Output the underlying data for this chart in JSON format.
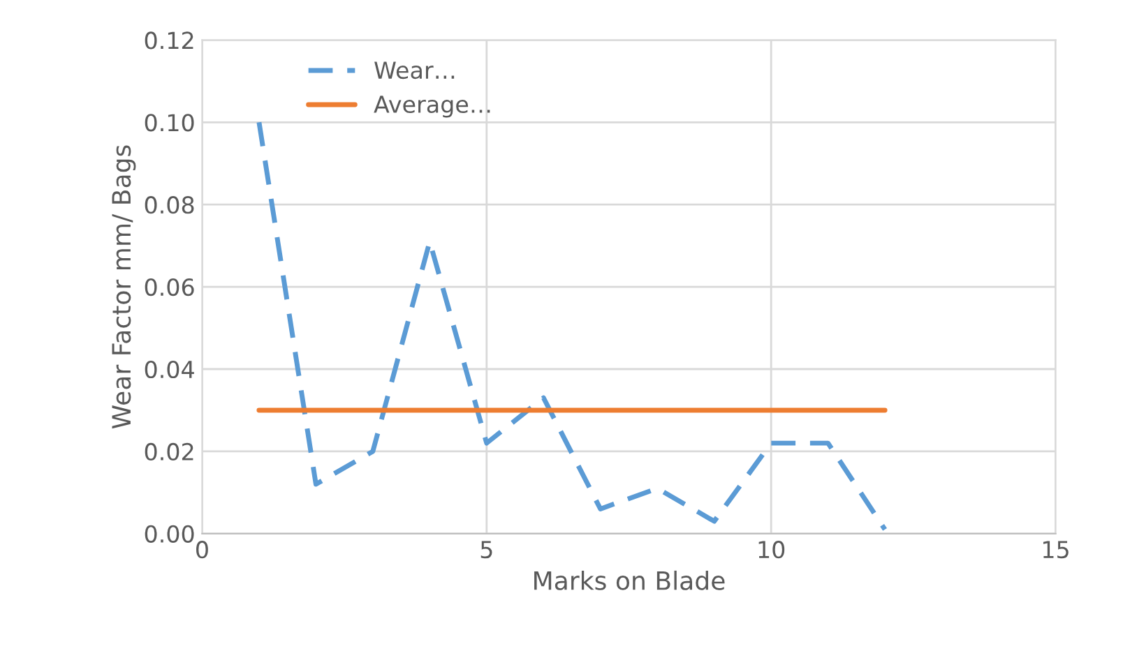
{
  "chart_data": {
    "type": "line",
    "xlabel": "Marks on Blade",
    "ylabel": "Wear Factor mm/ Bags",
    "xlim": [
      0,
      15
    ],
    "xticks": [
      0,
      5,
      10,
      15
    ],
    "ylim": [
      0,
      0.12
    ],
    "yticks": [
      {
        "value": 0,
        "label": "0.00"
      },
      {
        "value": 0.02,
        "label": "0.02"
      },
      {
        "value": 0.04,
        "label": "0.04"
      },
      {
        "value": 0.06,
        "label": "0.06"
      },
      {
        "value": 0.08,
        "label": "0.08"
      },
      {
        "value": 0.1,
        "label": "0.10"
      },
      {
        "value": 0.12,
        "label": "0.12"
      }
    ],
    "grid": true,
    "legend": "top left",
    "series": [
      {
        "name": "Wear…",
        "color": "#5b9bd5",
        "line_style": "dashed",
        "x": [
          1,
          2,
          3,
          4,
          5,
          6,
          7,
          8,
          9,
          10,
          11,
          12
        ],
        "values": [
          0.1,
          0.012,
          0.02,
          0.071,
          0.022,
          0.033,
          0.006,
          0.011,
          0.003,
          0.022,
          0.022,
          0.001
        ]
      },
      {
        "name": "Average…",
        "color": "#ed7d31",
        "line_style": "solid",
        "x": [
          1,
          12
        ],
        "values": [
          0.03,
          0.03
        ]
      }
    ]
  }
}
